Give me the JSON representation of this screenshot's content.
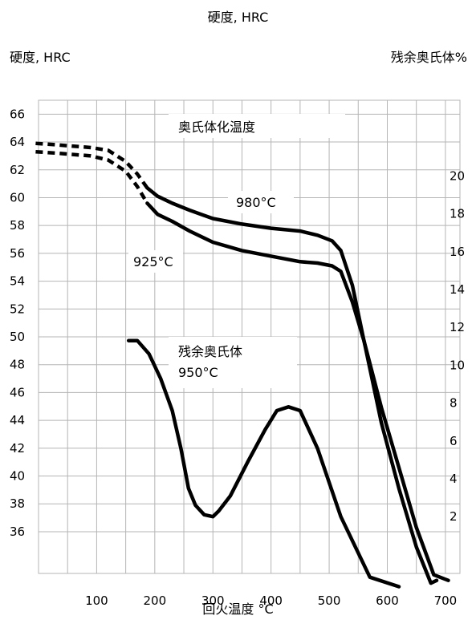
{
  "top_title": "硬度, HRC",
  "chart_data": {
    "type": "line",
    "title": "",
    "xlabel": "回火温度 °C",
    "ylabel_left": "硬度, HRC",
    "ylabel_right": "残余奥氏体%",
    "xlim": [
      0,
      725
    ],
    "ylim_left": [
      33,
      67
    ],
    "ylim_right": [
      -1,
      24
    ],
    "grid": true,
    "x_ticks": [
      100,
      200,
      300,
      400,
      500,
      600,
      700
    ],
    "y_left_ticks": [
      36,
      38,
      40,
      42,
      44,
      46,
      48,
      50,
      52,
      54,
      56,
      58,
      60,
      62,
      64,
      66
    ],
    "y_right_ticks": [
      2,
      4,
      6,
      8,
      10,
      12,
      14,
      16,
      18,
      20
    ],
    "annotations": {
      "austenitizing_temp": "奥氏体化温度",
      "temp_980": "980°C",
      "temp_925": "925°C",
      "retained_austenite": "残余奥氏体",
      "temp_950": "950°C"
    },
    "series": [
      {
        "name": "980°C",
        "axis": "left",
        "dashed_until": 187,
        "x": [
          -5,
          30,
          90,
          120,
          150,
          170,
          187,
          205,
          230,
          260,
          300,
          350,
          400,
          450,
          480,
          505,
          520,
          540,
          560,
          590,
          620,
          650,
          680,
          705
        ],
        "y": [
          63.9,
          63.8,
          63.6,
          63.4,
          62.6,
          61.7,
          60.7,
          60.1,
          59.6,
          59.1,
          58.5,
          58.1,
          57.8,
          57.6,
          57.3,
          56.9,
          56.2,
          53.7,
          49.7,
          44.9,
          40.6,
          36.3,
          32.9,
          32.5
        ]
      },
      {
        "name": "925°C",
        "axis": "left",
        "dashed_until": 187,
        "x": [
          -5,
          30,
          90,
          120,
          150,
          170,
          187,
          205,
          230,
          260,
          300,
          350,
          400,
          450,
          480,
          505,
          520,
          540,
          560,
          590,
          620,
          650,
          675,
          685
        ],
        "y": [
          63.3,
          63.2,
          63.0,
          62.7,
          61.9,
          60.8,
          59.6,
          58.8,
          58.3,
          57.6,
          56.8,
          56.2,
          55.8,
          55.4,
          55.3,
          55.1,
          54.7,
          52.5,
          49.7,
          43.8,
          39.1,
          34.9,
          32.3,
          32.5
        ]
      },
      {
        "name": "残余奥氏体 950°C",
        "axis": "right",
        "x": [
          155,
          170,
          190,
          210,
          230,
          245,
          258,
          270,
          285,
          300,
          310,
          330,
          360,
          390,
          410,
          430,
          450,
          480,
          520,
          570,
          620
        ],
        "y": [
          11.3,
          11.3,
          10.6,
          9.3,
          7.6,
          5.6,
          3.5,
          2.6,
          2.1,
          2.0,
          2.3,
          3.1,
          4.9,
          6.6,
          7.6,
          7.8,
          7.6,
          5.6,
          2.0,
          -1.2,
          -1.7
        ]
      }
    ]
  }
}
